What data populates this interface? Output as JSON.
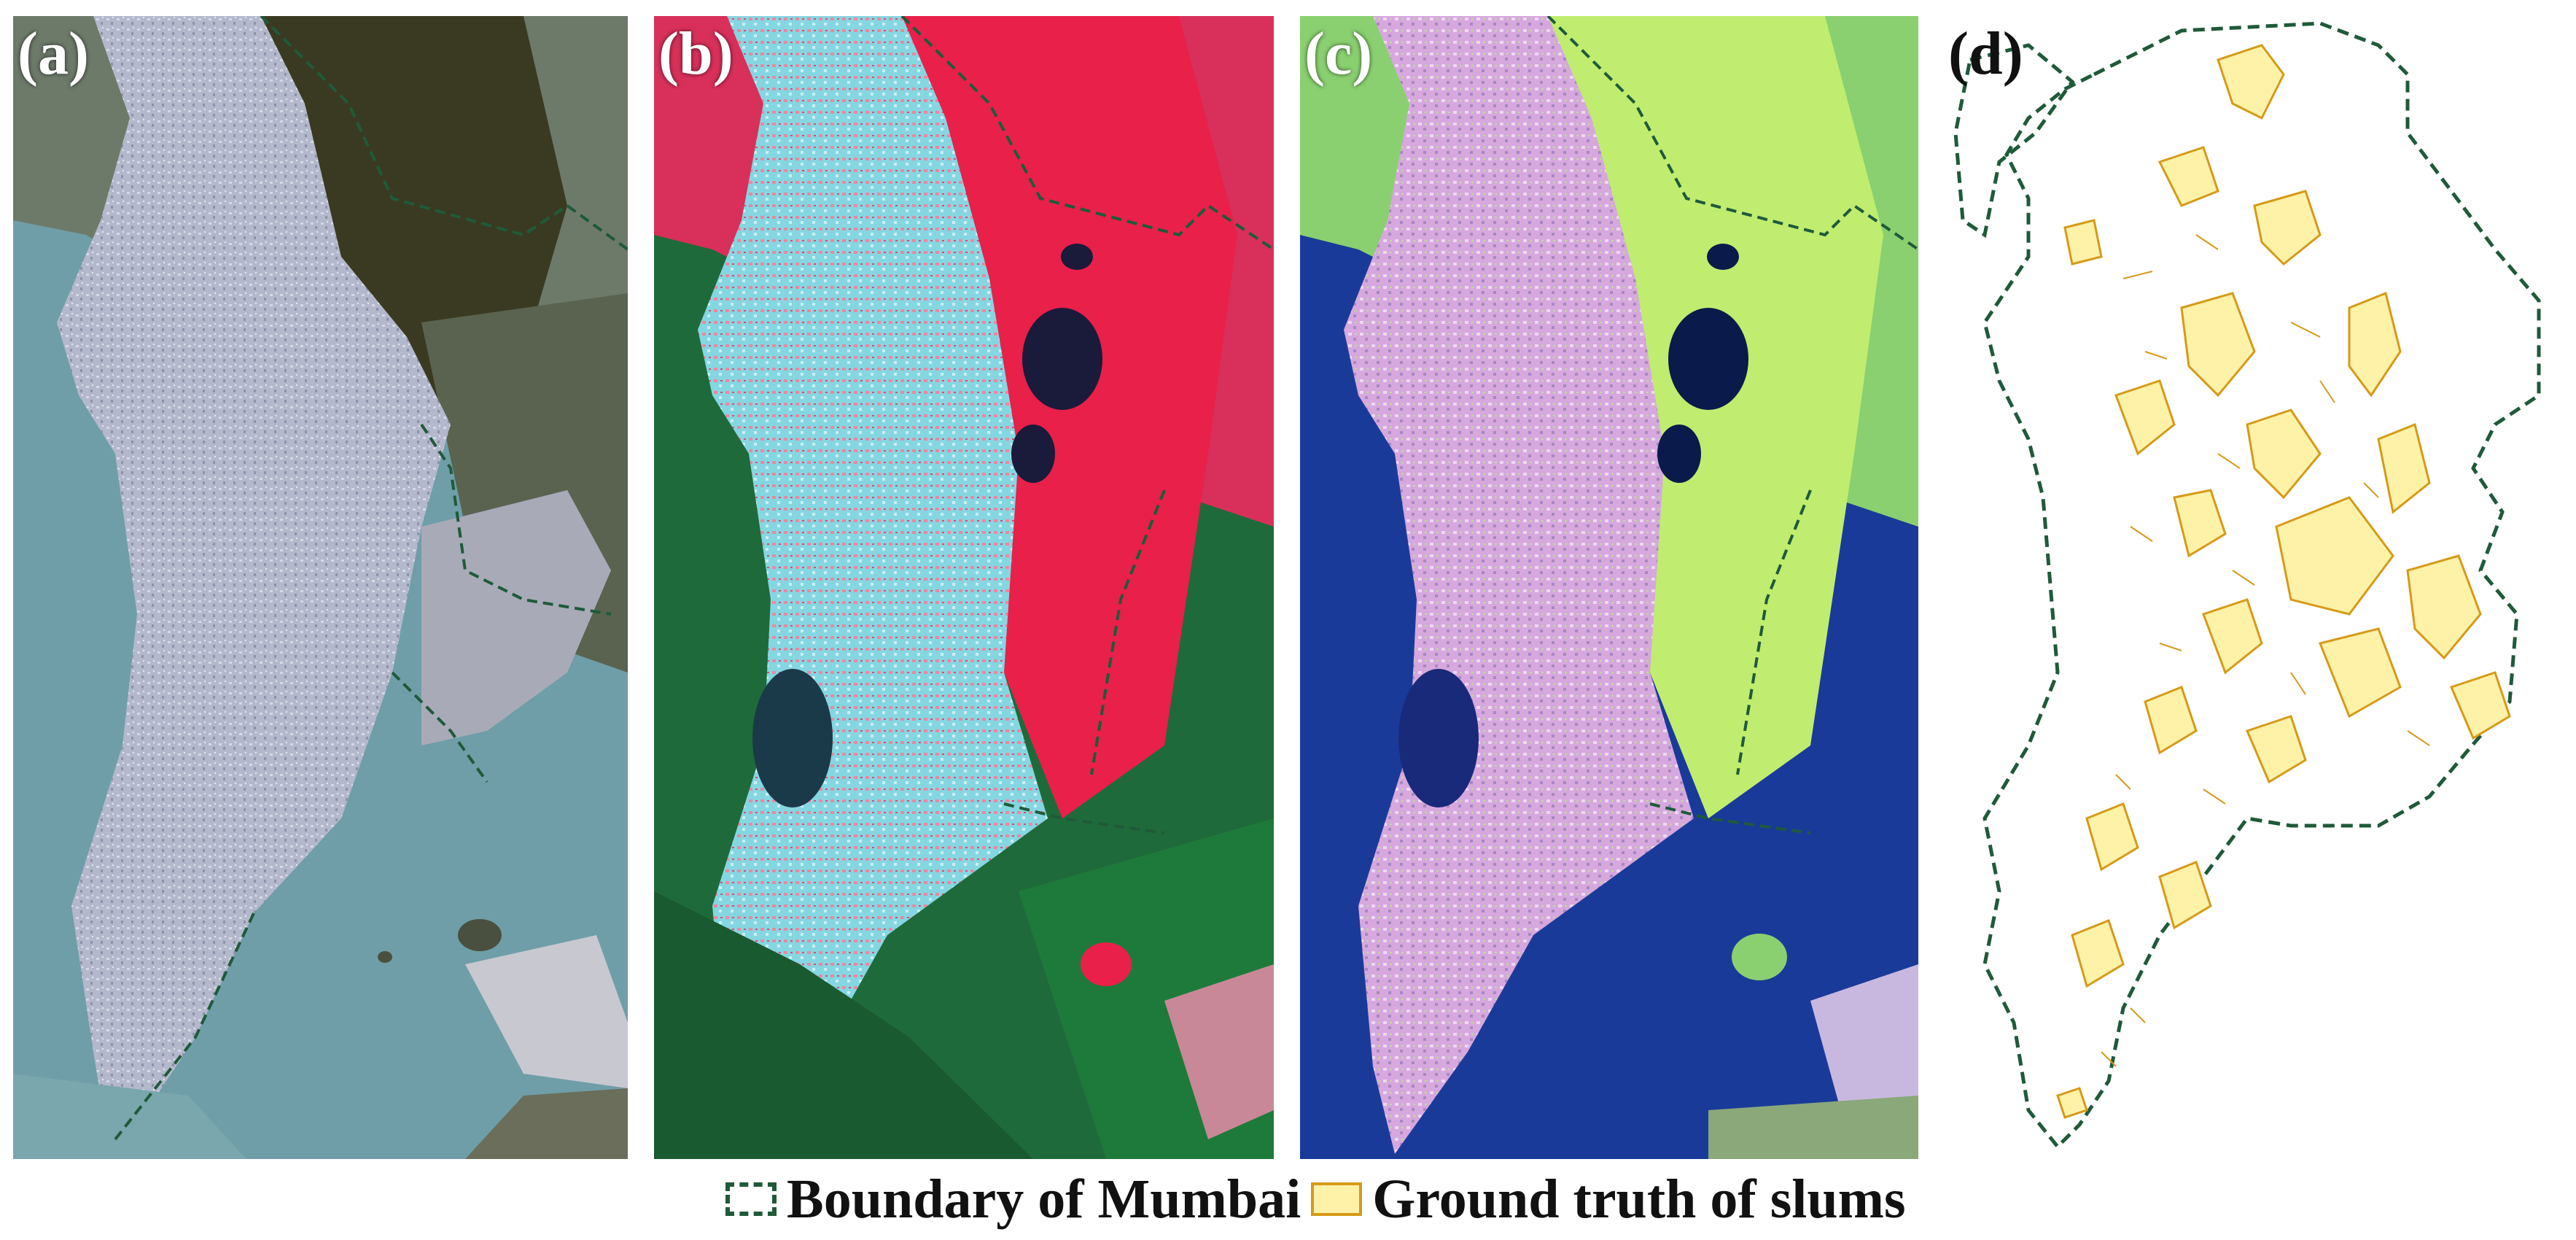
{
  "panels": [
    {
      "id": "a",
      "label": "(a)",
      "kind": "true-color satellite image"
    },
    {
      "id": "b",
      "label": "(b)",
      "kind": "false-color composite"
    },
    {
      "id": "c",
      "label": "(c)",
      "kind": "false-color composite"
    },
    {
      "id": "d",
      "label": "(d)",
      "kind": "boundary and slum polygons"
    }
  ],
  "legend": {
    "boundary_label": "Boundary of Mumbai",
    "slums_label": "Ground truth of slums"
  },
  "colors": {
    "boundary": "#1f5a3a",
    "slum_fill": "#fdf2a8",
    "slum_edge": "#d69a1a",
    "sea_a": "#6f9ea8",
    "land_a": "#b8bccf",
    "forest_a": "#3a3a22",
    "sea_b": "#1f6a3a",
    "land_b": "#7fd6e0",
    "veg_b": "#e8204a",
    "sea_c": "#1a3a9a",
    "land_c": "#d8a8e0",
    "veg_c": "#b8e86a",
    "water_dark": "#1a1a3a"
  }
}
